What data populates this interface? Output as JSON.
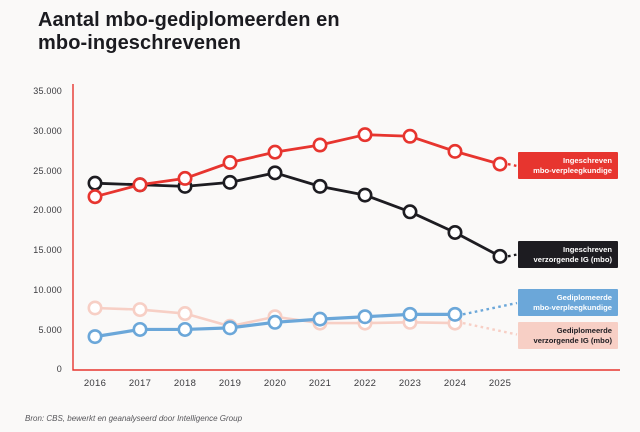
{
  "page": {
    "title_line1": "Aantal mbo-gediplomeerden en",
    "title_line2": "mbo-ingeschrevenen",
    "source": "Bron: CBS, bewerkt en geanalyseerd door Intelligence Group",
    "background_color": "#faf9f8"
  },
  "chart_data": {
    "type": "line",
    "title": "Aantal mbo-gediplomeerden en mbo-ingeschrevenen",
    "categories": [
      "2016",
      "2017",
      "2018",
      "2019",
      "2020",
      "2021",
      "2022",
      "2023",
      "2024",
      "2025"
    ],
    "x_tick_labels": [
      "2016",
      "2017",
      "2018",
      "2019",
      "2020",
      "2021",
      "2022",
      "2023",
      "2024",
      "2025"
    ],
    "y_tick_labels": [
      "35.000",
      "30.000",
      "25.000",
      "20.000",
      "15.000",
      "10.000",
      "5.000",
      "0"
    ],
    "ylim": [
      0,
      35000
    ],
    "y_tick_step": 5000,
    "grid": false,
    "axis_color": "#e7352f",
    "legend_position": "right",
    "marker_fill": "#ffffff",
    "series": [
      {
        "name": "Ingeschreven mbo-verpleegkundige",
        "color": "#e7352f",
        "text_color": "#ffffff",
        "label_lines": [
          "Ingeschreven",
          "mbo-verpleegkundige"
        ],
        "dashed_connector_to_legend": true,
        "values": [
          21800,
          23300,
          24100,
          26100,
          27400,
          28300,
          29600,
          29400,
          27500,
          25900
        ]
      },
      {
        "name": "Ingeschreven verzorgende IG (mbo)",
        "color": "#1d1c21",
        "text_color": "#ffffff",
        "label_lines": [
          "Ingeschreven",
          "verzorgende IG (mbo)"
        ],
        "dashed_connector_to_legend": true,
        "values": [
          23500,
          23300,
          23100,
          23600,
          24800,
          23100,
          22000,
          19900,
          17300,
          14300
        ]
      },
      {
        "name": "Gediplomeerde mbo-verpleegkundige",
        "color": "#6ba7d9",
        "text_color": "#ffffff",
        "label_lines": [
          "Gediplomeerde",
          "mbo-verpleegkundige"
        ],
        "dashed_connector_to_legend": true,
        "values": [
          4200,
          5100,
          5100,
          5300,
          6000,
          6400,
          6700,
          7000,
          7000
        ]
      },
      {
        "name": "Gediplomeerde verzorgende IG (mbo)",
        "color": "#f7cfc5",
        "text_color": "#1d1c21",
        "label_lines": [
          "Gediplomeerde",
          "verzorgende IG (mbo)"
        ],
        "dashed_connector_to_legend": true,
        "values": [
          7800,
          7600,
          7100,
          5500,
          6700,
          5900,
          5900,
          6000,
          5900
        ]
      }
    ]
  }
}
